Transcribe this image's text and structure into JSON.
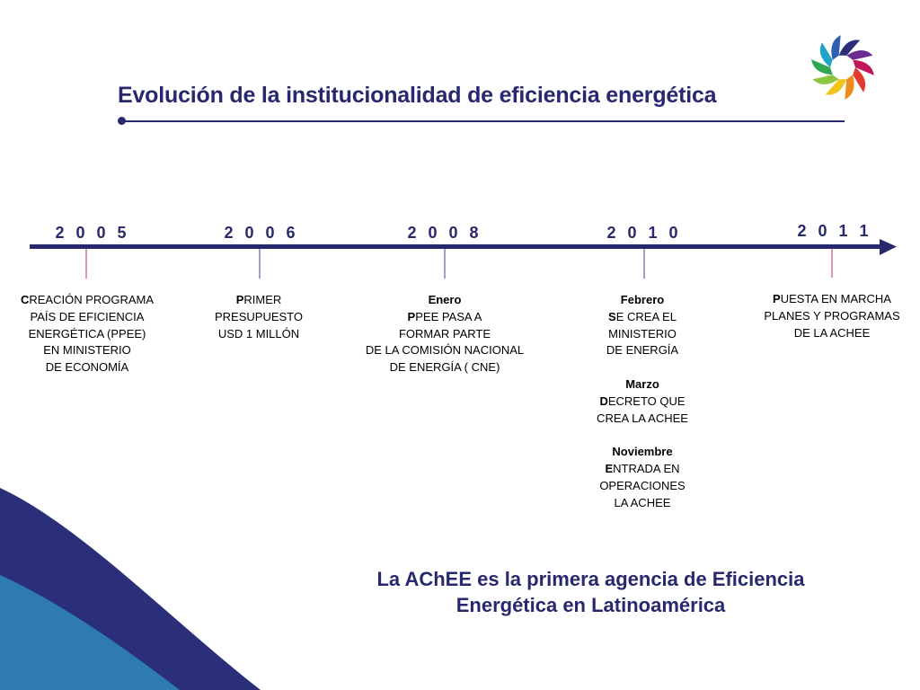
{
  "slide": {
    "title": "Evolución de la institucionalidad de eficiencia energética",
    "colors": {
      "primary_navy": "#27286e",
      "tick_pink": "#c9577f",
      "tick_blue": "#5a62a8",
      "wave_light_blue": "#2e7ab3",
      "wave_navy": "#2b2f7a"
    },
    "logo": {
      "icon": "pinwheel-logo-icon"
    }
  },
  "timeline": {
    "years": [
      {
        "label": "2 0 0 5"
      },
      {
        "label": "2 0 0 6"
      },
      {
        "label": "2 0 0 8"
      },
      {
        "label": "2 0 1 0"
      },
      {
        "label": "2 0 1 1"
      }
    ],
    "events": [
      {
        "lines": [
          {
            "cap": "C",
            "rest": "REACIÓN PROGRAMA"
          },
          {
            "text": "PAÍS DE EFICIENCIA"
          },
          {
            "text": "ENERGÉTICA (PPEE)"
          },
          {
            "text": "EN MINISTERIO"
          },
          {
            "text": "DE ECONOMÍA"
          }
        ]
      },
      {
        "lines": [
          {
            "cap": "P",
            "rest": "RIMER"
          },
          {
            "text": "PRESUPUESTO"
          },
          {
            "text": "USD 1 MILLÓN"
          }
        ]
      },
      {
        "month": "Enero",
        "lines": [
          {
            "cap": "P",
            "rest": "PEE PASA A"
          },
          {
            "text": "FORMAR PARTE"
          },
          {
            "text": "DE LA COMISIÓN NACIONAL"
          },
          {
            "text": "DE ENERGÍA ( CNE)"
          }
        ]
      },
      {
        "blocks": [
          {
            "month": "Febrero",
            "lines": [
              {
                "cap": "S",
                "rest": "E CREA EL"
              },
              {
                "text": "MINISTERIO"
              },
              {
                "text": "DE ENERGÍA"
              }
            ]
          },
          {
            "month": "Marzo",
            "lines": [
              {
                "cap": "D",
                "rest": "ECRETO QUE"
              },
              {
                "text": "CREA LA AChEE"
              }
            ]
          },
          {
            "month": "Noviembre",
            "lines": [
              {
                "cap": "E",
                "rest": "NTRADA EN"
              },
              {
                "text": "OPERACIONES"
              },
              {
                "text": "LA AChEE"
              }
            ]
          }
        ]
      },
      {
        "lines": [
          {
            "cap": "P",
            "rest": "UESTA EN MARCHA"
          },
          {
            "text": "PLANES Y PROGRAMAS"
          },
          {
            "text": "DE LA AChEE"
          }
        ]
      }
    ]
  },
  "callout": {
    "line1": "La AChEE es la primera agencia de Eficiencia",
    "line2": "Energética en Latinoamérica"
  }
}
